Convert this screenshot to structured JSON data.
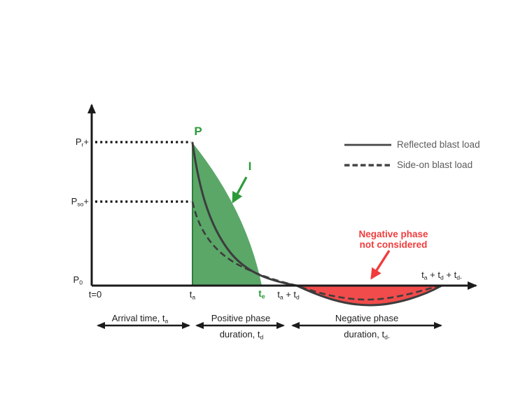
{
  "colors": {
    "green_fill": "#5AA768",
    "green_edge": "#2F7D3C",
    "green_text": "#2C9A3A",
    "red_fill": "#F14B4B",
    "red_text": "#F03C3C",
    "curve": "#3D3D3D",
    "axis": "#1B1B1B",
    "legend_line": "#454545",
    "legend_text": "#5C5C5C"
  },
  "y_axis_labels": {
    "pr_plus": [
      [
        "P",
        "n"
      ],
      [
        "r",
        "s"
      ],
      [
        "+",
        "n"
      ]
    ],
    "pso_plus": [
      [
        "P",
        "n"
      ],
      [
        "so",
        "s"
      ],
      [
        "+",
        "n"
      ]
    ],
    "p0": [
      [
        "P",
        "n"
      ],
      [
        "0",
        "s"
      ]
    ]
  },
  "x_axis_labels": {
    "t0": [
      [
        "t=0",
        "n"
      ]
    ],
    "ta": [
      [
        "t",
        "n"
      ],
      [
        "a",
        "s"
      ]
    ],
    "te": [
      [
        "t",
        "n"
      ],
      [
        "e",
        "s"
      ]
    ],
    "ta_td": [
      [
        "t",
        "n"
      ],
      [
        "a",
        "s"
      ],
      [
        " + t",
        "n"
      ],
      [
        "d",
        "s"
      ]
    ],
    "ta_td_tdminus": [
      [
        "t",
        "n"
      ],
      [
        "a",
        "s"
      ],
      [
        " + t",
        "n"
      ],
      [
        "d",
        "s"
      ],
      [
        " + t",
        "n"
      ],
      [
        "d-",
        "s"
      ]
    ]
  },
  "curve_labels": {
    "peak_pressure": "P",
    "impulse": "I"
  },
  "legend": {
    "reflected": {
      "label": "Reflected blast load",
      "line_style": "solid"
    },
    "side_on": {
      "label": "Side-on blast load",
      "line_style": "dashed"
    }
  },
  "negative_note": {
    "line1": "Negative phase",
    "line2": "not considered"
  },
  "phase_annotations": {
    "arrival": [
      [
        "Arrival time, t",
        "n"
      ],
      [
        "a",
        "s"
      ]
    ],
    "positive_line1": [
      [
        "Positive phase",
        "n"
      ]
    ],
    "positive_line2": [
      [
        "duration, t",
        "n"
      ],
      [
        "d",
        "s"
      ]
    ],
    "negative_line1": [
      [
        "Negative phase",
        "n"
      ]
    ],
    "negative_line2": [
      [
        "duration, t",
        "n"
      ],
      [
        "d-",
        "s"
      ]
    ]
  }
}
